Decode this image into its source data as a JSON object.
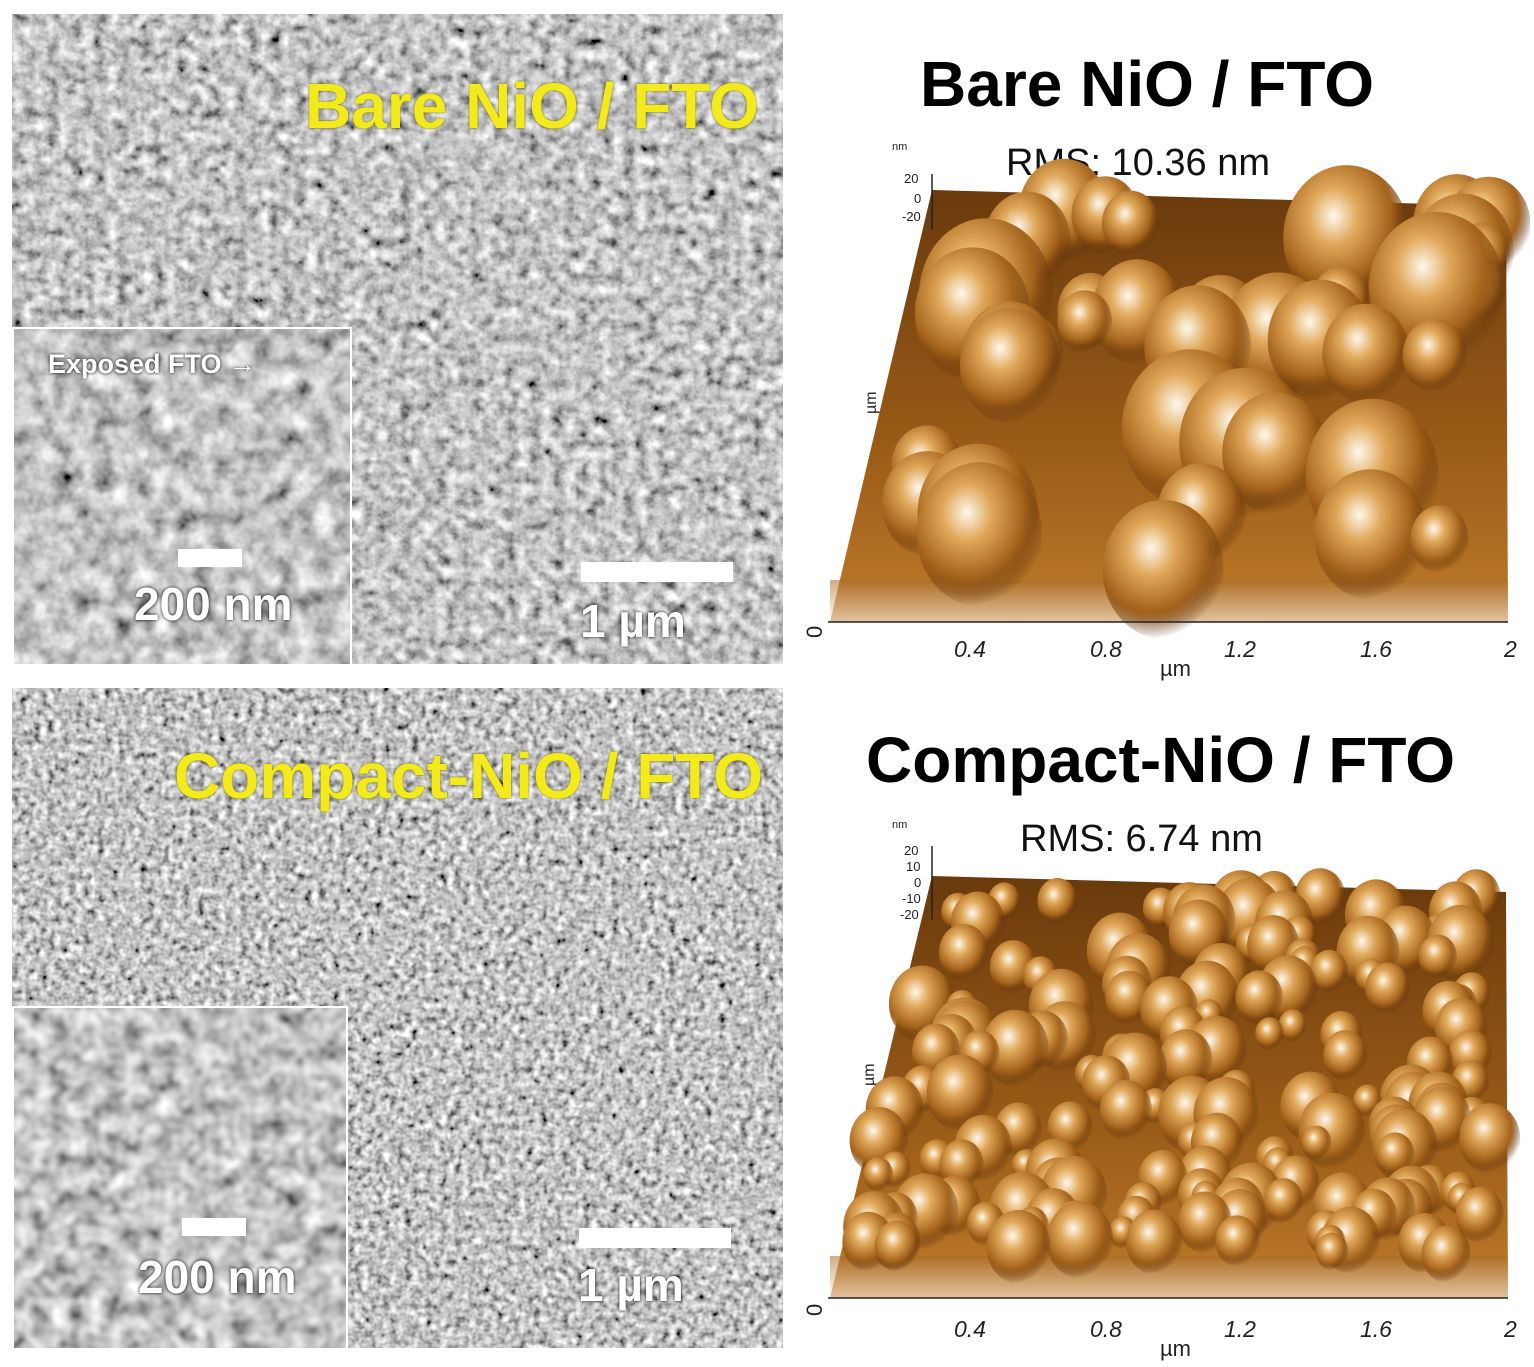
{
  "panels": {
    "sem_top": {
      "title": "Bare NiO / FTO",
      "inset_label": "Exposed FTO →",
      "inset_scale": "200 nm",
      "scale": "1 µm"
    },
    "afm_top": {
      "title": "Bare NiO / FTO",
      "rms": "RMS: 10.36 nm",
      "x_ticks": [
        "0.4",
        "0.8",
        "1.2",
        "1.6",
        "2"
      ],
      "origin": "0",
      "x_unit": "µm",
      "z_unit": "nm",
      "z_ticks": [
        "20",
        "0",
        "-20"
      ],
      "y_unit": "µm"
    },
    "sem_bottom": {
      "title": "Compact-NiO / FTO",
      "inset_scale": "200 nm",
      "scale": "1 µm"
    },
    "afm_bottom": {
      "title": "Compact-NiO / FTO",
      "rms": "RMS: 6.74 nm",
      "x_ticks": [
        "0.4",
        "0.8",
        "1.2",
        "1.6",
        "2"
      ],
      "origin": "0",
      "x_unit": "µm",
      "z_unit": "nm",
      "z_ticks": [
        "20",
        "10",
        "0",
        "-10",
        "-20"
      ],
      "y_unit": "µm"
    }
  },
  "colors": {
    "sem_title": "#f2ea1a",
    "afm_dark": "#3a1c04",
    "afm_mid": "#b0701a",
    "afm_light": "#fff6e6"
  }
}
